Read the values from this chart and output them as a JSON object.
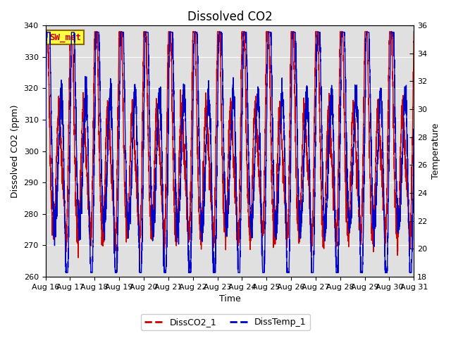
{
  "title": "Dissolved CO2",
  "xlabel": "Time",
  "ylabel_left": "Dissolved CO2 (ppm)",
  "ylabel_right": "Temperature",
  "ylim_left": [
    260,
    340
  ],
  "ylim_right": [
    18,
    36
  ],
  "yticks_left": [
    260,
    270,
    280,
    290,
    300,
    310,
    320,
    330,
    340
  ],
  "yticks_right": [
    18,
    20,
    22,
    24,
    26,
    28,
    30,
    32,
    34,
    36
  ],
  "xtick_labels": [
    "Aug 16",
    "Aug 17",
    "Aug 18",
    "Aug 19",
    "Aug 20",
    "Aug 21",
    "Aug 22",
    "Aug 23",
    "Aug 24",
    "Aug 25",
    "Aug 26",
    "Aug 27",
    "Aug 28",
    "Aug 29",
    "Aug 30",
    "Aug 31"
  ],
  "plot_bg_color": "#e0e0e0",
  "fig_bg_color": "#ffffff",
  "line1_color": "#cc0000",
  "line2_color": "#0000cc",
  "line1_label": "DissCO2_1",
  "line2_label": "DissTemp_1",
  "station_label": "SW_met",
  "station_box_facecolor": "#ffff44",
  "station_box_edgecolor": "#886600",
  "title_fontsize": 12,
  "axis_label_fontsize": 9,
  "tick_fontsize": 8
}
